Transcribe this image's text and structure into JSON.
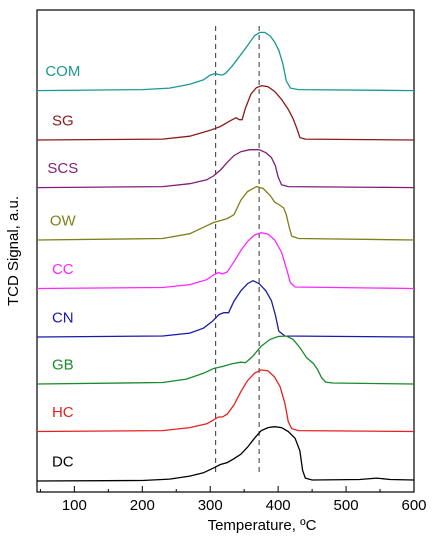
{
  "chart_data": {
    "type": "line",
    "xlabel": "Temperature, ºC",
    "ylabel": "TCD Signal, a.u.",
    "xlim": [
      45,
      600
    ],
    "xticks": [
      100,
      200,
      300,
      400,
      500,
      600
    ],
    "xtick_labels": [
      "100",
      "200",
      "300",
      "400",
      "500",
      "600"
    ],
    "reference_lines_x": [
      308,
      372
    ],
    "series": [
      {
        "name": "COM",
        "color": "#1a9990",
        "baseline": 8.05,
        "points": [
          [
            45,
            0
          ],
          [
            200,
            0.02
          ],
          [
            240,
            0.05
          ],
          [
            270,
            0.13
          ],
          [
            290,
            0.22
          ],
          [
            300,
            0.32
          ],
          [
            307,
            0.35
          ],
          [
            313,
            0.33
          ],
          [
            318,
            0.32
          ],
          [
            323,
            0.36
          ],
          [
            332,
            0.5
          ],
          [
            345,
            0.74
          ],
          [
            355,
            0.93
          ],
          [
            365,
            1.13
          ],
          [
            373,
            1.2
          ],
          [
            380,
            1.2
          ],
          [
            388,
            1.13
          ],
          [
            395,
            1.0
          ],
          [
            401,
            0.83
          ],
          [
            407,
            0.55
          ],
          [
            412,
            0.2
          ],
          [
            418,
            0.05
          ],
          [
            430,
            0.02
          ],
          [
            600,
            0
          ]
        ]
      },
      {
        "name": "SG",
        "color": "#8b1a1a",
        "baseline": 7.03,
        "points": [
          [
            45,
            0
          ],
          [
            230,
            0.02
          ],
          [
            270,
            0.08
          ],
          [
            300,
            0.2
          ],
          [
            315,
            0.28
          ],
          [
            330,
            0.4
          ],
          [
            338,
            0.46
          ],
          [
            343,
            0.42
          ],
          [
            347,
            0.42
          ],
          [
            352,
            0.66
          ],
          [
            360,
            0.95
          ],
          [
            368,
            1.08
          ],
          [
            376,
            1.12
          ],
          [
            385,
            1.1
          ],
          [
            395,
            1.0
          ],
          [
            405,
            0.84
          ],
          [
            415,
            0.63
          ],
          [
            422,
            0.44
          ],
          [
            428,
            0.22
          ],
          [
            432,
            0.05
          ],
          [
            440,
            0.02
          ],
          [
            600,
            0
          ]
        ]
      },
      {
        "name": "SCS",
        "color": "#7f1f7a",
        "baseline": 6.05,
        "points": [
          [
            45,
            0
          ],
          [
            230,
            0.02
          ],
          [
            270,
            0.08
          ],
          [
            295,
            0.16
          ],
          [
            305,
            0.24
          ],
          [
            315,
            0.36
          ],
          [
            325,
            0.52
          ],
          [
            335,
            0.66
          ],
          [
            345,
            0.74
          ],
          [
            358,
            0.78
          ],
          [
            372,
            0.78
          ],
          [
            382,
            0.72
          ],
          [
            390,
            0.62
          ],
          [
            396,
            0.45
          ],
          [
            400,
            0.22
          ],
          [
            405,
            0.06
          ],
          [
            415,
            0.02
          ],
          [
            600,
            0
          ]
        ]
      },
      {
        "name": "OW",
        "color": "#7f7f1a",
        "baseline": 4.97,
        "points": [
          [
            45,
            0
          ],
          [
            230,
            0.03
          ],
          [
            270,
            0.13
          ],
          [
            290,
            0.26
          ],
          [
            305,
            0.36
          ],
          [
            315,
            0.4
          ],
          [
            325,
            0.44
          ],
          [
            335,
            0.52
          ],
          [
            345,
            0.82
          ],
          [
            355,
            1.0
          ],
          [
            368,
            1.1
          ],
          [
            378,
            1.06
          ],
          [
            388,
            0.92
          ],
          [
            395,
            0.78
          ],
          [
            402,
            0.72
          ],
          [
            408,
            0.66
          ],
          [
            412,
            0.52
          ],
          [
            416,
            0.28
          ],
          [
            420,
            0.08
          ],
          [
            430,
            0.03
          ],
          [
            600,
            0
          ]
        ]
      },
      {
        "name": "CC",
        "color": "#ff26ff",
        "baseline": 3.97,
        "points": [
          [
            45,
            0
          ],
          [
            230,
            0.02
          ],
          [
            270,
            0.08
          ],
          [
            295,
            0.18
          ],
          [
            305,
            0.28
          ],
          [
            312,
            0.33
          ],
          [
            318,
            0.3
          ],
          [
            325,
            0.34
          ],
          [
            335,
            0.55
          ],
          [
            345,
            0.78
          ],
          [
            355,
            0.97
          ],
          [
            365,
            1.1
          ],
          [
            375,
            1.15
          ],
          [
            385,
            1.12
          ],
          [
            395,
            1.0
          ],
          [
            405,
            0.75
          ],
          [
            412,
            0.42
          ],
          [
            418,
            0.12
          ],
          [
            425,
            0.03
          ],
          [
            600,
            0
          ]
        ]
      },
      {
        "name": "CN",
        "color": "#1a1aaa",
        "baseline": 2.97,
        "points": [
          [
            45,
            0
          ],
          [
            230,
            0.02
          ],
          [
            270,
            0.08
          ],
          [
            290,
            0.18
          ],
          [
            303,
            0.32
          ],
          [
            313,
            0.46
          ],
          [
            320,
            0.5
          ],
          [
            327,
            0.5
          ],
          [
            335,
            0.74
          ],
          [
            345,
            0.95
          ],
          [
            355,
            1.1
          ],
          [
            363,
            1.16
          ],
          [
            372,
            1.1
          ],
          [
            382,
            0.95
          ],
          [
            390,
            0.75
          ],
          [
            396,
            0.45
          ],
          [
            401,
            0.12
          ],
          [
            410,
            0.02
          ],
          [
            600,
            0
          ]
        ]
      },
      {
        "name": "GB",
        "color": "#1a8a2a",
        "baseline": 2.0,
        "points": [
          [
            45,
            0
          ],
          [
            230,
            0.03
          ],
          [
            265,
            0.1
          ],
          [
            290,
            0.22
          ],
          [
            305,
            0.32
          ],
          [
            318,
            0.36
          ],
          [
            333,
            0.42
          ],
          [
            345,
            0.45
          ],
          [
            352,
            0.44
          ],
          [
            362,
            0.56
          ],
          [
            375,
            0.78
          ],
          [
            388,
            0.92
          ],
          [
            400,
            0.98
          ],
          [
            412,
            0.99
          ],
          [
            422,
            0.92
          ],
          [
            432,
            0.75
          ],
          [
            442,
            0.54
          ],
          [
            452,
            0.42
          ],
          [
            458,
            0.3
          ],
          [
            464,
            0.13
          ],
          [
            470,
            0.04
          ],
          [
            480,
            0.02
          ],
          [
            600,
            0
          ]
        ]
      },
      {
        "name": "HC",
        "color": "#e82020",
        "baseline": 1.02,
        "points": [
          [
            45,
            0
          ],
          [
            230,
            0.02
          ],
          [
            270,
            0.08
          ],
          [
            295,
            0.16
          ],
          [
            305,
            0.24
          ],
          [
            312,
            0.3
          ],
          [
            318,
            0.3
          ],
          [
            325,
            0.36
          ],
          [
            335,
            0.55
          ],
          [
            345,
            0.82
          ],
          [
            355,
            1.05
          ],
          [
            365,
            1.2
          ],
          [
            375,
            1.27
          ],
          [
            385,
            1.25
          ],
          [
            395,
            1.12
          ],
          [
            403,
            0.92
          ],
          [
            410,
            0.58
          ],
          [
            415,
            0.2
          ],
          [
            420,
            0.06
          ],
          [
            430,
            0.02
          ],
          [
            600,
            0
          ]
        ]
      },
      {
        "name": "DC",
        "color": "#000000",
        "baseline": 0.0,
        "points": [
          [
            45,
            0
          ],
          [
            200,
            0.01
          ],
          [
            240,
            0.04
          ],
          [
            270,
            0.1
          ],
          [
            290,
            0.17
          ],
          [
            305,
            0.27
          ],
          [
            315,
            0.34
          ],
          [
            325,
            0.38
          ],
          [
            335,
            0.46
          ],
          [
            345,
            0.55
          ],
          [
            355,
            0.7
          ],
          [
            365,
            0.88
          ],
          [
            375,
            1.04
          ],
          [
            385,
            1.1
          ],
          [
            395,
            1.12
          ],
          [
            405,
            1.1
          ],
          [
            415,
            1.02
          ],
          [
            425,
            0.88
          ],
          [
            432,
            0.62
          ],
          [
            436,
            0.22
          ],
          [
            440,
            0.06
          ],
          [
            450,
            0.02
          ],
          [
            520,
            0.03
          ],
          [
            545,
            0.06
          ],
          [
            565,
            0.03
          ],
          [
            600,
            0.02
          ]
        ]
      }
    ]
  }
}
